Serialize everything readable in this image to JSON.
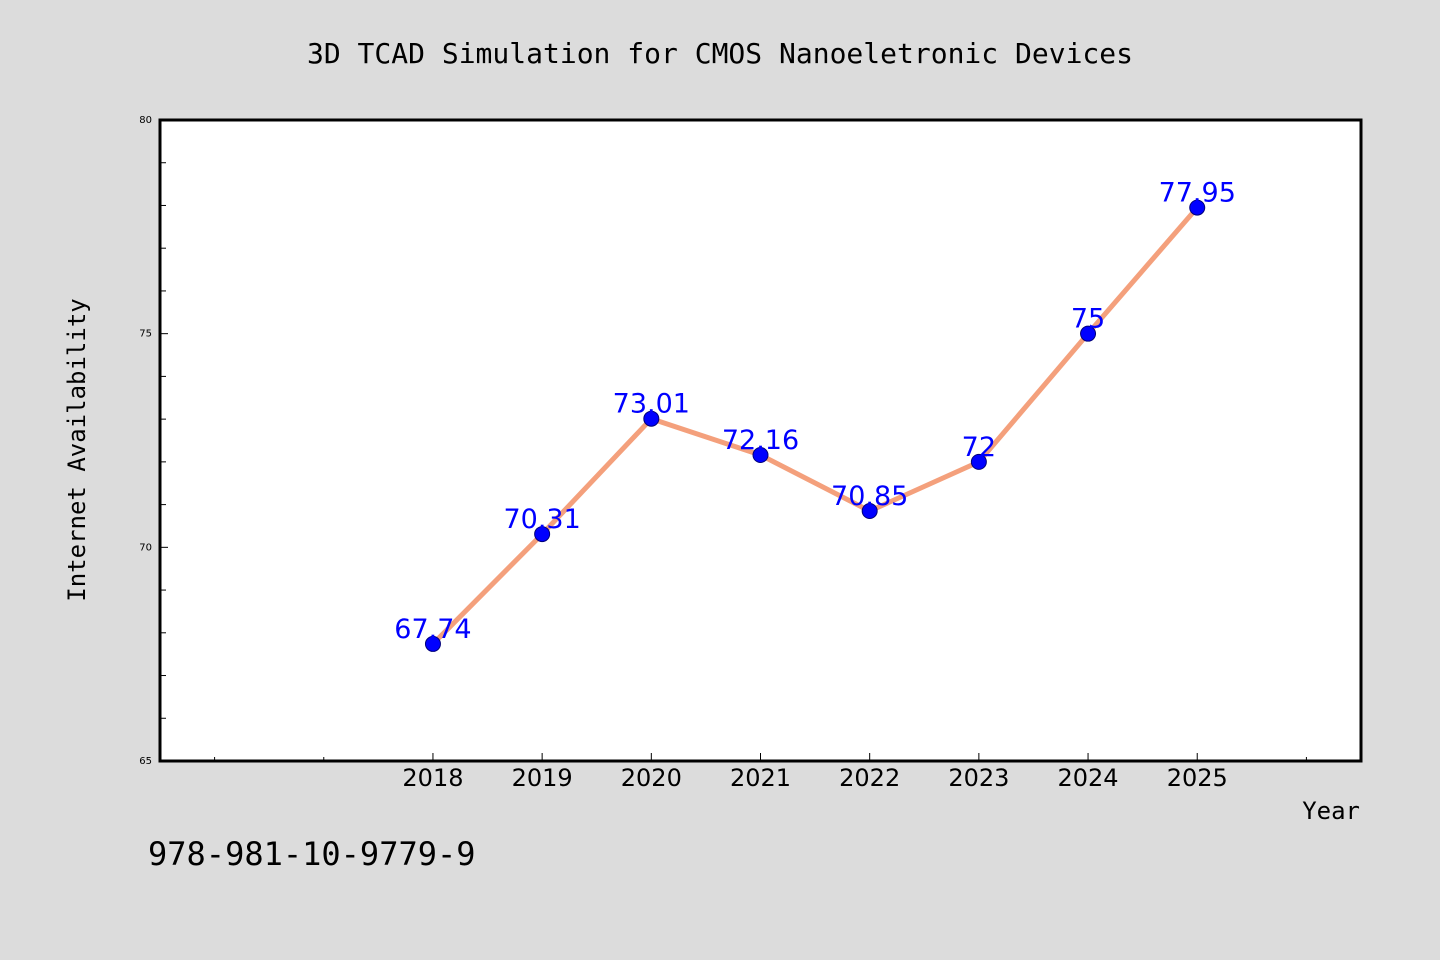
{
  "chart_data": {
    "type": "line",
    "title": "3D TCAD Simulation for CMOS Nanoeletronic Devices",
    "xlabel": "Year",
    "ylabel": "Internet Availability",
    "categories": [
      "2018",
      "2019",
      "2020",
      "2021",
      "2022",
      "2023",
      "2024",
      "2025"
    ],
    "x": [
      2018,
      2019,
      2020,
      2021,
      2022,
      2023,
      2024,
      2025
    ],
    "values": [
      67.74,
      70.31,
      73.01,
      72.16,
      70.85,
      72,
      75,
      77.95
    ],
    "value_labels": [
      "67.74",
      "70.31",
      "73.01",
      "72.16",
      "70.85",
      "72",
      "75",
      "77.95"
    ],
    "xlim": [
      2015.5,
      2026.5
    ],
    "ylim": [
      65,
      80
    ],
    "yticks": [
      65,
      70,
      75,
      80
    ],
    "ytick_labels": [
      "65",
      "70",
      "75",
      "80"
    ],
    "grid": false,
    "line_color": "#f4a07c",
    "marker_color": "#0000ff",
    "label_color": "#0000ff",
    "background_color": "#dcdcdc",
    "plot_background": "#ffffff"
  },
  "footer": {
    "isbn": "978-981-10-9779-9"
  }
}
